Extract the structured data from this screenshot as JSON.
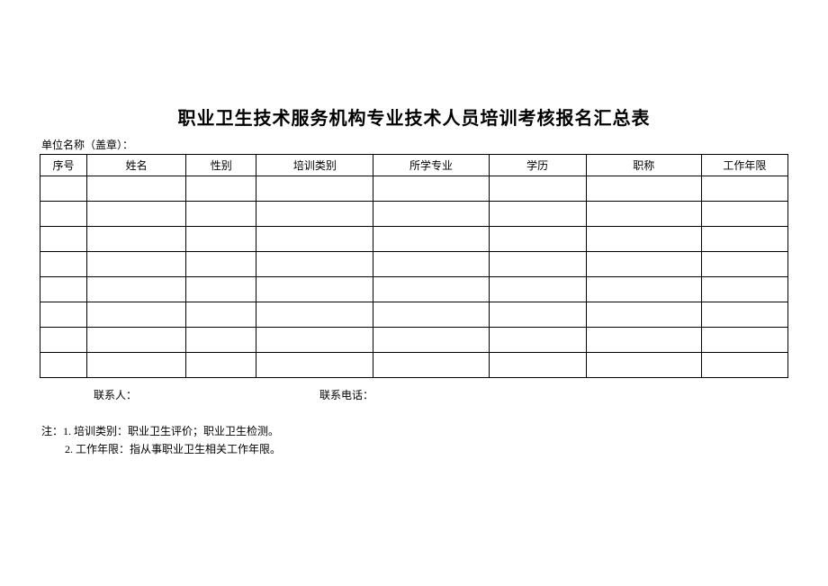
{
  "title": "职业卫生技术服务机构专业技术人员培训考核报名汇总表",
  "org_label": "单位名称（盖章）：",
  "columns": {
    "seq": "序号",
    "name": "姓名",
    "sex": "性别",
    "type": "培训类别",
    "major": "所学专业",
    "edu": "学历",
    "title": "职称",
    "years": "工作年限"
  },
  "contact": {
    "person_label": "联系人：",
    "phone_label": "联系电话："
  },
  "notes": {
    "line1": "注：1. 培训类别：职业卫生评价；职业卫生检测。",
    "line2": "2. 工作年限：指从事职业卫生相关工作年限。"
  },
  "style": {
    "background_color": "#ffffff",
    "border_color": "#000000",
    "title_fontsize": 20,
    "body_fontsize": 12,
    "empty_rows": 8
  }
}
